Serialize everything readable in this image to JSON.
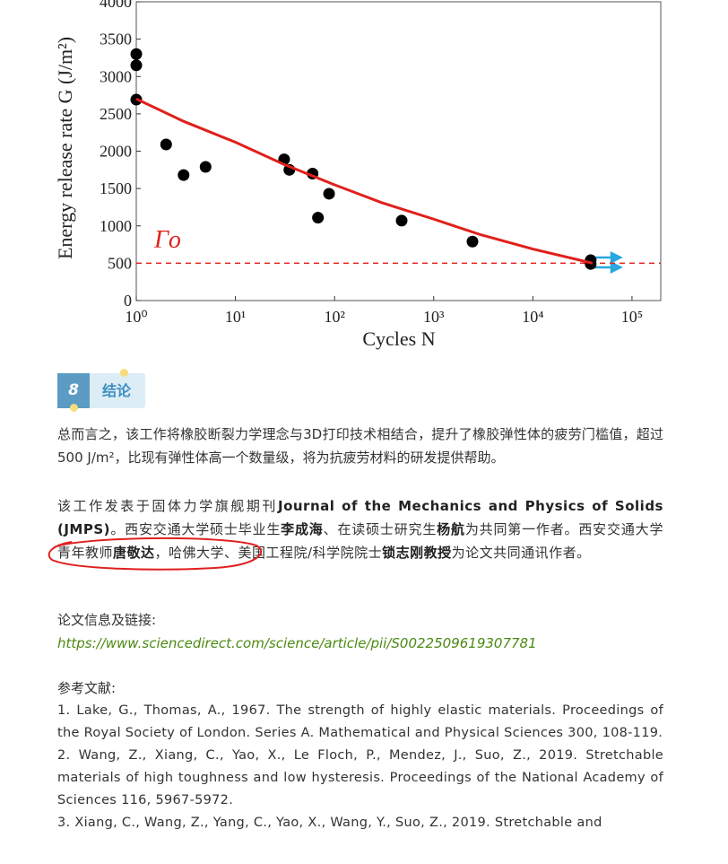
{
  "chart_data": {
    "type": "scatter",
    "x_label": "Cycles N",
    "y_label": "Energy release rate G (J/m²)",
    "annotation": "Γo",
    "log_x": true,
    "xlim": [
      1,
      195000
    ],
    "ylim": [
      0,
      4000
    ],
    "xticks": [
      {
        "value": 1,
        "label": "10⁰"
      },
      {
        "value": 10,
        "label": "10¹"
      },
      {
        "value": 100,
        "label": "10²"
      },
      {
        "value": 1000,
        "label": "10³"
      },
      {
        "value": 10000,
        "label": "10⁴"
      },
      {
        "value": 100000,
        "label": "10⁵"
      }
    ],
    "yticks": [
      0,
      500,
      1000,
      1500,
      2000,
      2500,
      3000,
      3500,
      4000
    ],
    "series": [
      {
        "kind": "points",
        "color": "#000000",
        "x": [
          1,
          1,
          1,
          2,
          3,
          5,
          31,
          35,
          60,
          68,
          88,
          475,
          2460,
          38300,
          38300
        ],
        "values": [
          3300,
          3150,
          2690,
          2090,
          1680,
          1790,
          1890,
          1750,
          1700,
          1110,
          1430,
          1070,
          790,
          540,
          490
        ]
      },
      {
        "kind": "fit",
        "color": "#e0201b",
        "x": [
          1,
          3,
          10,
          30,
          100,
          300,
          1000,
          3000,
          10000,
          40000
        ],
        "values": [
          2700,
          2400,
          2120,
          1830,
          1550,
          1310,
          1090,
          880,
          690,
          500
        ]
      }
    ],
    "threshold": {
      "value": 500,
      "color": "#e0201b"
    }
  },
  "article": {
    "badge_number": "8",
    "badge_title": "结论",
    "para1": "总而言之，该工作将橡胶断裂力学理念与3D打印技术相结合，提升了橡胶弹性体的疲劳门槛值，超过500 J/m²，比现有弹性体高一个数量级，将为抗疲劳材料的研发提供帮助。",
    "para2": [
      {
        "text": "该工作发表于固体力学旗舰期刊",
        "bold": false
      },
      {
        "text": "Journal of the Mechanics and Physics of Solids (JMPS)",
        "bold": true
      },
      {
        "text": "。西安交通大学硕士毕业生",
        "bold": false
      },
      {
        "text": "李成海",
        "bold": true
      },
      {
        "text": "、在读硕士研究生",
        "bold": false
      },
      {
        "text": "杨航",
        "bold": true
      },
      {
        "text": "为共同第一作者。西安交通大学青年教师",
        "bold": false
      },
      {
        "text": "唐敬达",
        "bold": true
      },
      {
        "text": "，哈佛大学、美国工程院/科学院院士",
        "bold": false
      },
      {
        "text": "锁志刚教授",
        "bold": true
      },
      {
        "text": "为论文共同通讯作者。",
        "bold": false
      }
    ],
    "link_label": "论文信息及链接:",
    "link": "https://www.sciencedirect.com/science/article/pii/S0022509619307781",
    "refs_title": "参考文献:",
    "refs": [
      "1. Lake, G., Thomas, A., 1967. The strength of highly elastic materials. Proceedings of the Royal Society of London. Series A. Mathematical and Physical Sciences 300, 108-119.",
      "2. Wang, Z., Xiang, C., Yao, X., Le Floch, P., Mendez, J., Suo, Z., 2019. Stretchable materials of high toughness and low hysteresis. Proceedings of the National Academy of Sciences 116, 5967-5972.",
      "3. Xiang, C., Wang, Z., Yang, C., Yao, X., Wang, Y., Suo, Z., 2019. Stretchable and"
    ]
  }
}
